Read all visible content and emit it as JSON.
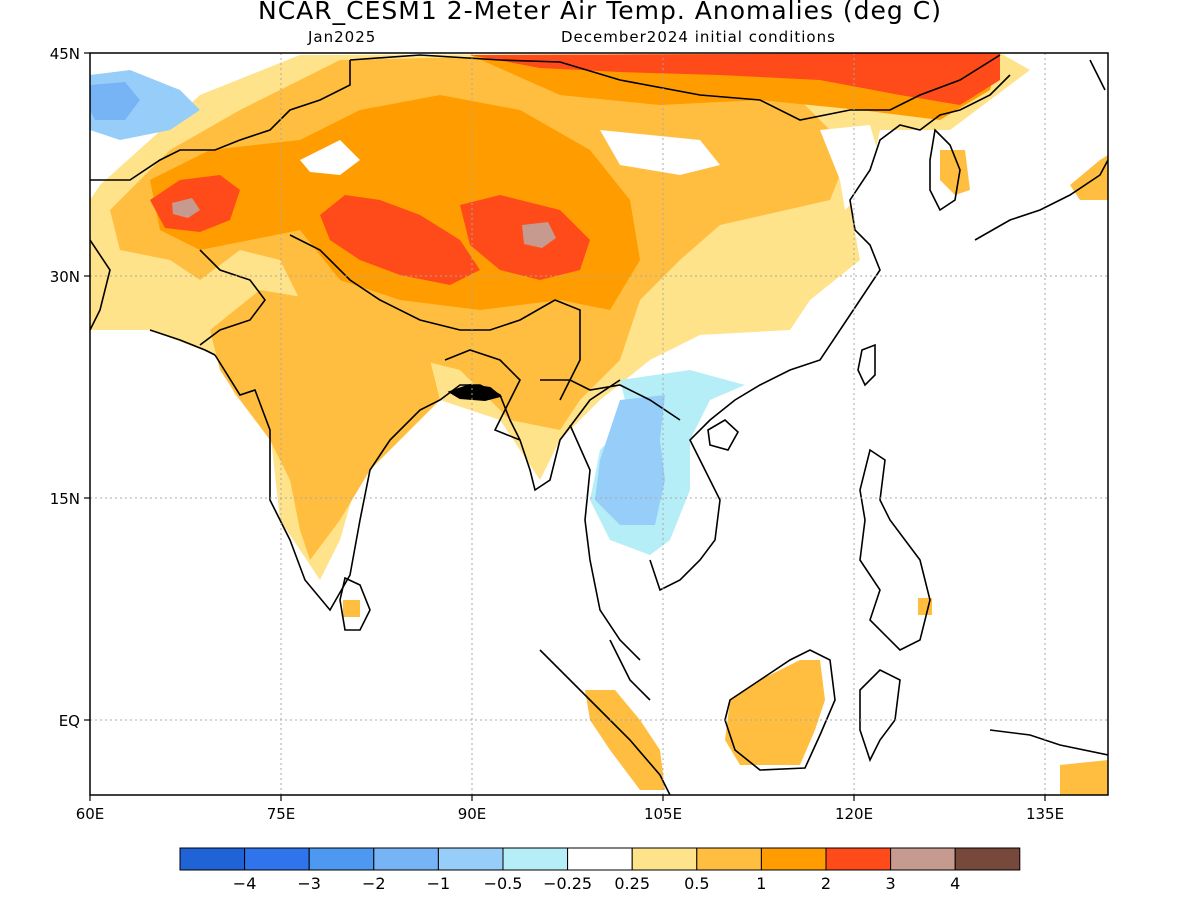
{
  "title": "NCAR_CESM1 2-Meter Air Temp. Anomalies (deg C)",
  "forecast_month": "Jan2025",
  "init_conditions": "December2024 initial conditions",
  "axes": {
    "lat_labels": [
      "45N",
      "30N",
      "15N",
      "EQ"
    ],
    "lon_labels": [
      "60E",
      "75E",
      "90E",
      "105E",
      "120E",
      "135E"
    ],
    "lat_range": [
      -5,
      45
    ],
    "lon_range": [
      60,
      140
    ]
  },
  "colorbar": {
    "labels": [
      "-4",
      "-3",
      "-2",
      "-1",
      "-0.5",
      "-0.25",
      "0.25",
      "0.5",
      "1",
      "2",
      "3",
      "4"
    ],
    "colors": [
      "#1f63d6",
      "#2f74ea",
      "#4d98f0",
      "#77b4f5",
      "#97cdf9",
      "#b6eef8",
      "#ffffff",
      "#ffe38a",
      "#ffbe3f",
      "#ff9c00",
      "#ff4a1a",
      "#c69a8f",
      "#77493d"
    ]
  },
  "regions": [
    {
      "name": "west-china-mongolia-warm",
      "color": "#ffbe3f"
    },
    {
      "name": "tibet-hotspot",
      "color": "#ff4a1a"
    },
    {
      "name": "north-china-hotspot",
      "color": "#ff4a1a"
    },
    {
      "name": "afghanistan-hotspot",
      "color": "#ff4a1a"
    },
    {
      "name": "india-warm",
      "color": "#ffbe3f"
    },
    {
      "name": "indochina-cool",
      "color": "#97cdf9"
    },
    {
      "name": "borneo-warm",
      "color": "#ffbe3f"
    },
    {
      "name": "sumatra-warm",
      "color": "#ffbe3f"
    }
  ]
}
